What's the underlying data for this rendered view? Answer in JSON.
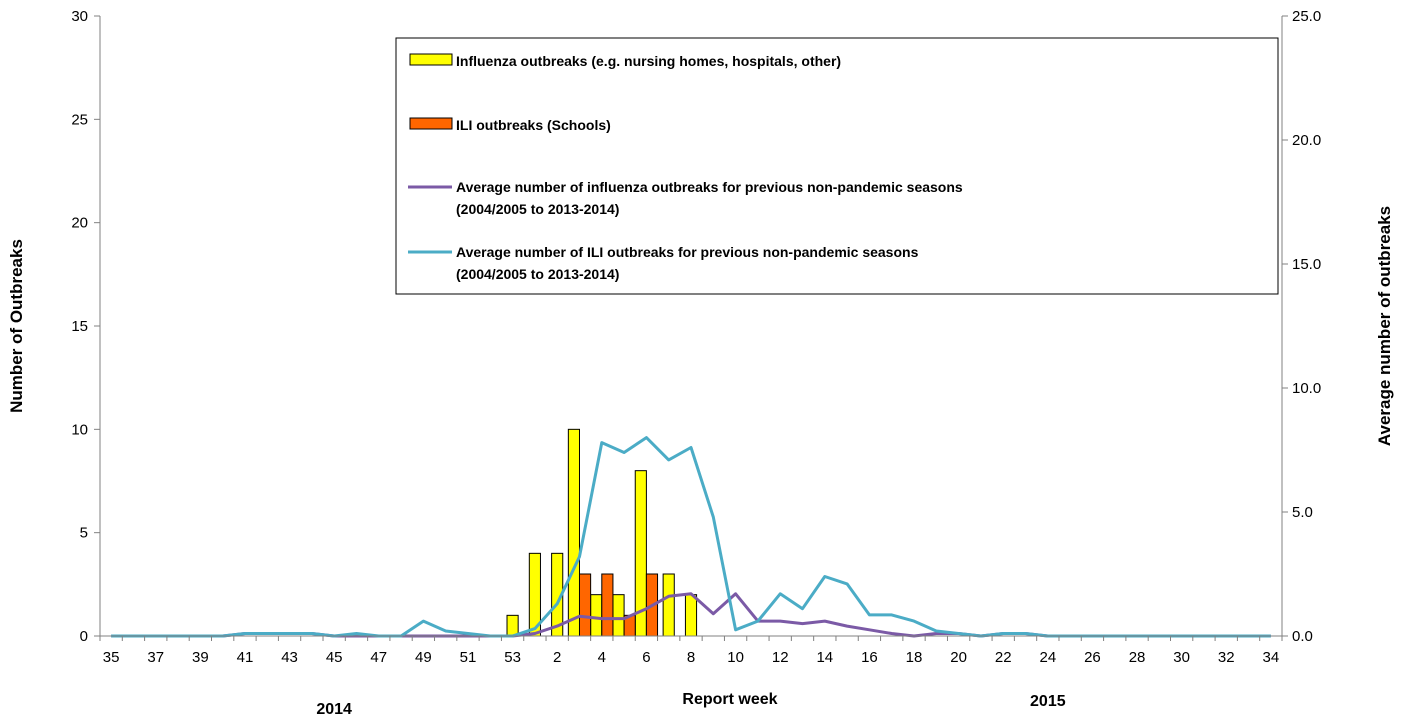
{
  "chart_data": {
    "type": "bar",
    "x_axis": {
      "label": "Report week",
      "categories": [
        "35",
        "36",
        "37",
        "38",
        "39",
        "40",
        "41",
        "42",
        "43",
        "44",
        "45",
        "46",
        "47",
        "48",
        "49",
        "50",
        "51",
        "52",
        "53",
        "1",
        "2",
        "3",
        "4",
        "5",
        "6",
        "7",
        "8",
        "9",
        "10",
        "11",
        "12",
        "13",
        "14",
        "15",
        "16",
        "17",
        "18",
        "19",
        "20",
        "21",
        "22",
        "23",
        "24",
        "25",
        "26",
        "27",
        "28",
        "29",
        "30",
        "31",
        "32",
        "33",
        "34"
      ],
      "tick_labels": [
        "35",
        "37",
        "39",
        "41",
        "43",
        "45",
        "47",
        "49",
        "51",
        "53",
        "2",
        "4",
        "6",
        "8",
        "10",
        "12",
        "14",
        "16",
        "18",
        "20",
        "22",
        "24",
        "26",
        "28",
        "30",
        "32",
        "34"
      ],
      "year_labels": [
        {
          "text": "2014",
          "category": "45"
        },
        {
          "text": "2015",
          "category": "24"
        }
      ]
    },
    "y_axis_left": {
      "label": "Number of Outbreaks",
      "range": [
        0,
        30
      ],
      "ticks": [
        "0",
        "5",
        "10",
        "15",
        "20",
        "25",
        "30"
      ]
    },
    "y_axis_right": {
      "label": "Average number of outbreaks",
      "range": [
        0,
        25
      ],
      "ticks": [
        "0.0",
        "5.0",
        "10.0",
        "15.0",
        "20.0",
        "25.0"
      ]
    },
    "grid": false,
    "legend_position": "top-right",
    "series": [
      {
        "name": "Influenza outbreaks (e.g. nursing homes, hospitals, other)",
        "type": "bar",
        "axis": "left",
        "color": "#FFFF00",
        "values": {
          "53": 1,
          "1": 4,
          "2": 4,
          "3": 10,
          "4": 2,
          "5": 2,
          "6": 8,
          "7": 3,
          "8": 2
        }
      },
      {
        "name": "ILI outbreaks (Schools)",
        "type": "bar",
        "axis": "left",
        "color": "#FF6600",
        "values": {
          "3": 3,
          "4": 3,
          "5": 1,
          "6": 3
        }
      },
      {
        "name": "Average number of influenza outbreaks for previous non-pandemic seasons",
        "name_line2": "(2004/2005 to 2013-2014)",
        "type": "line",
        "axis": "right",
        "color": "#7B5AA6",
        "values": [
          0,
          0,
          0,
          0,
          0,
          0,
          0.1,
          0.1,
          0.1,
          0.1,
          0,
          0,
          0,
          0,
          0,
          0,
          0,
          0,
          0,
          0.1,
          0.4,
          0.8,
          0.7,
          0.7,
          1.1,
          1.6,
          1.7,
          0.9,
          1.7,
          0.6,
          0.6,
          0.5,
          0.6,
          0.4,
          0.25,
          0.1,
          0,
          0.1,
          0.1,
          0,
          0.1,
          0.1,
          0,
          0,
          0,
          0,
          0,
          0,
          0,
          0,
          0,
          0,
          0
        ]
      },
      {
        "name": "Average number of ILI outbreaks for previous non-pandemic seasons",
        "name_line2": "(2004/2005 to 2013-2014)",
        "type": "line",
        "axis": "right",
        "color": "#4BACC6",
        "values": [
          0,
          0,
          0,
          0,
          0,
          0,
          0.1,
          0.1,
          0.1,
          0.1,
          0,
          0.1,
          0,
          0,
          0.6,
          0.2,
          0.1,
          0,
          0,
          0.3,
          1.3,
          3.2,
          7.8,
          7.4,
          8.0,
          7.1,
          7.6,
          4.8,
          0.25,
          0.6,
          1.7,
          1.1,
          2.4,
          2.1,
          0.85,
          0.85,
          0.6,
          0.2,
          0.1,
          0,
          0.1,
          0.1,
          0,
          0,
          0,
          0,
          0,
          0,
          0,
          0,
          0,
          0,
          0
        ]
      }
    ]
  }
}
